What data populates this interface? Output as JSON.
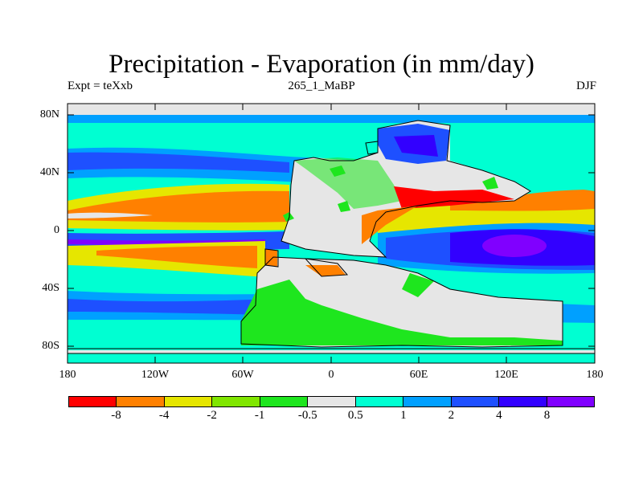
{
  "title": "Precipitation - Evaporation (in mm/day)",
  "left_string": "Expt = teXxb",
  "center_string": "265_1_MaBP",
  "right_string": "DJF",
  "y_ticks": [
    "80N",
    "40N",
    "0",
    "40S",
    "80S"
  ],
  "x_ticks": [
    "180",
    "120W",
    "60W",
    "0",
    "60E",
    "120E",
    "180"
  ],
  "colorbar": {
    "colors": [
      "#ff0000",
      "#ff8000",
      "#e6e600",
      "#80e600",
      "#1ee61e",
      "#e6e6e6",
      "#00ffd2",
      "#00a0ff",
      "#1e50ff",
      "#3200ff",
      "#8000ff"
    ],
    "labels": [
      "-8",
      "-4",
      "-2",
      "-1",
      "-0.5",
      "0.5",
      "1",
      "2",
      "4",
      "8"
    ]
  },
  "chart_data": {
    "type": "heatmap",
    "title": "Precipitation - Evaporation (in mm/day)",
    "variable": "Precipitation - Evaporation",
    "units": "mm/day",
    "experiment": "teXxb",
    "period": "265_1_MaBP",
    "season": "DJF",
    "x_range": [
      -180,
      180
    ],
    "y_range": [
      -90,
      90
    ],
    "contour_levels": [
      -8,
      -4,
      -2,
      -1,
      -0.5,
      0.5,
      1,
      2,
      4,
      8
    ],
    "projection": "cylindrical equidistant",
    "continent_outlines": true
  }
}
